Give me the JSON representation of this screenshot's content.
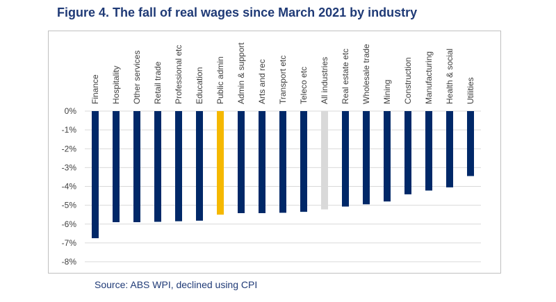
{
  "title": "Figure 4. The fall of real wages since March 2021 by industry",
  "source": "Source: ABS WPI, declined using CPI",
  "colors": {
    "default": "#002868",
    "highlight": "#f5b800",
    "aggregate": "#d9d9d9",
    "title": "#1f3a76"
  },
  "chart_data": {
    "type": "bar",
    "title": "",
    "xlabel": "",
    "ylabel": "",
    "ylim": [
      -8,
      0
    ],
    "ytick_step": 1,
    "ytick_suffix": "%",
    "grid": true,
    "legend": "none",
    "categories": [
      "Finance",
      "Hospitality",
      "Other services",
      "Retail trade",
      "Professional etc",
      "Education",
      "Public admin",
      "Admin & support",
      "Arts and rec",
      "Transport etc",
      "Teleco etc",
      "All industries",
      "Real estate etc",
      "Wholesale trade",
      "Mining",
      "Construction",
      "Manufacturing",
      "Health & social",
      "Utilities"
    ],
    "values": [
      -6.75,
      -5.9,
      -5.9,
      -5.88,
      -5.85,
      -5.82,
      -5.5,
      -5.42,
      -5.42,
      -5.4,
      -5.35,
      -5.22,
      -5.07,
      -4.95,
      -4.8,
      -4.42,
      -4.22,
      -4.05,
      -3.45
    ],
    "bar_colors": [
      "default",
      "default",
      "default",
      "default",
      "default",
      "default",
      "highlight",
      "default",
      "default",
      "default",
      "default",
      "aggregate",
      "default",
      "default",
      "default",
      "default",
      "default",
      "default",
      "default"
    ]
  }
}
